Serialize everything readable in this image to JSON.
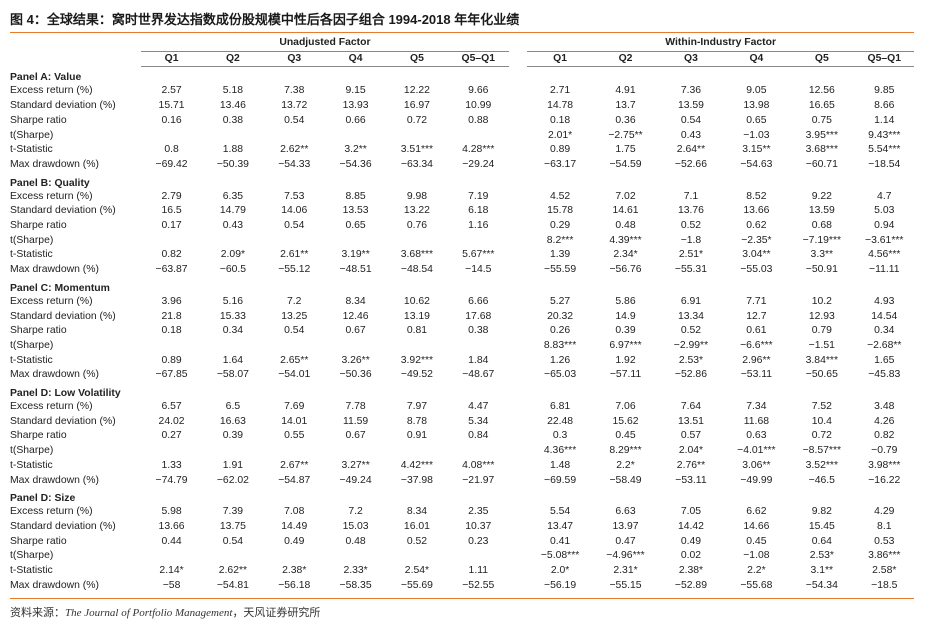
{
  "title": "图 4：全球结果：窝时世界发达指数成份股规模中性后各因子组合 1994-2018 年年化业绩",
  "groups": {
    "unadjusted": "Unadjusted Factor",
    "within": "Within-Industry Factor"
  },
  "columns": [
    "Q1",
    "Q2",
    "Q3",
    "Q4",
    "Q5",
    "Q5–Q1",
    "Q1",
    "Q2",
    "Q3",
    "Q4",
    "Q5",
    "Q5–Q1"
  ],
  "panels": [
    {
      "title": "Panel A: Value",
      "rows": [
        {
          "label": "Excess return (%)",
          "values": [
            "2.57",
            "5.18",
            "7.38",
            "9.15",
            "12.22",
            "9.66",
            "2.71",
            "4.91",
            "7.36",
            "9.05",
            "12.56",
            "9.85"
          ]
        },
        {
          "label": "Standard deviation (%)",
          "values": [
            "15.71",
            "13.46",
            "13.72",
            "13.93",
            "16.97",
            "10.99",
            "14.78",
            "13.7",
            "13.59",
            "13.98",
            "16.65",
            "8.66"
          ]
        },
        {
          "label": "Sharpe ratio",
          "values": [
            "0.16",
            "0.38",
            "0.54",
            "0.66",
            "0.72",
            "0.88",
            "0.18",
            "0.36",
            "0.54",
            "0.65",
            "0.75",
            "1.14"
          ]
        },
        {
          "label": "t(Sharpe)",
          "values": [
            "",
            "",
            "",
            "",
            "",
            "",
            "2.01*",
            "−2.75**",
            "0.43",
            "−1.03",
            "3.95***",
            "9.43***"
          ]
        },
        {
          "label": "t-Statistic",
          "values": [
            "0.8",
            "1.88",
            "2.62**",
            "3.2**",
            "3.51***",
            "4.28***",
            "0.89",
            "1.75",
            "2.64**",
            "3.15**",
            "3.68***",
            "5.54***"
          ]
        },
        {
          "label": "Max drawdown (%)",
          "values": [
            "−69.42",
            "−50.39",
            "−54.33",
            "−54.36",
            "−63.34",
            "−29.24",
            "−63.17",
            "−54.59",
            "−52.66",
            "−54.63",
            "−60.71",
            "−18.54"
          ]
        }
      ]
    },
    {
      "title": "Panel B: Quality",
      "rows": [
        {
          "label": "Excess return (%)",
          "values": [
            "2.79",
            "6.35",
            "7.53",
            "8.85",
            "9.98",
            "7.19",
            "4.52",
            "7.02",
            "7.1",
            "8.52",
            "9.22",
            "4.7"
          ]
        },
        {
          "label": "Standard deviation (%)",
          "values": [
            "16.5",
            "14.79",
            "14.06",
            "13.53",
            "13.22",
            "6.18",
            "15.78",
            "14.61",
            "13.76",
            "13.66",
            "13.59",
            "5.03"
          ]
        },
        {
          "label": "Sharpe ratio",
          "values": [
            "0.17",
            "0.43",
            "0.54",
            "0.65",
            "0.76",
            "1.16",
            "0.29",
            "0.48",
            "0.52",
            "0.62",
            "0.68",
            "0.94"
          ]
        },
        {
          "label": "t(Sharpe)",
          "values": [
            "",
            "",
            "",
            "",
            "",
            "",
            "8.2***",
            "4.39***",
            "−1.8",
            "−2.35*",
            "−7.19***",
            "−3.61***"
          ]
        },
        {
          "label": "t-Statistic",
          "values": [
            "0.82",
            "2.09*",
            "2.61**",
            "3.19**",
            "3.68***",
            "5.67***",
            "1.39",
            "2.34*",
            "2.51*",
            "3.04**",
            "3.3**",
            "4.56***"
          ]
        },
        {
          "label": "Max drawdown (%)",
          "values": [
            "−63.87",
            "−60.5",
            "−55.12",
            "−48.51",
            "−48.54",
            "−14.5",
            "−55.59",
            "−56.76",
            "−55.31",
            "−55.03",
            "−50.91",
            "−11.11"
          ]
        }
      ]
    },
    {
      "title": "Panel C: Momentum",
      "rows": [
        {
          "label": "Excess return (%)",
          "values": [
            "3.96",
            "5.16",
            "7.2",
            "8.34",
            "10.62",
            "6.66",
            "5.27",
            "5.86",
            "6.91",
            "7.71",
            "10.2",
            "4.93"
          ]
        },
        {
          "label": "Standard deviation (%)",
          "values": [
            "21.8",
            "15.33",
            "13.25",
            "12.46",
            "13.19",
            "17.68",
            "20.32",
            "14.9",
            "13.34",
            "12.7",
            "12.93",
            "14.54"
          ]
        },
        {
          "label": "Sharpe ratio",
          "values": [
            "0.18",
            "0.34",
            "0.54",
            "0.67",
            "0.81",
            "0.38",
            "0.26",
            "0.39",
            "0.52",
            "0.61",
            "0.79",
            "0.34"
          ]
        },
        {
          "label": "t(Sharpe)",
          "values": [
            "",
            "",
            "",
            "",
            "",
            "",
            "8.83***",
            "6.97***",
            "−2.99**",
            "−6.6***",
            "−1.51",
            "−2.68**"
          ]
        },
        {
          "label": "t-Statistic",
          "values": [
            "0.89",
            "1.64",
            "2.65**",
            "3.26**",
            "3.92***",
            "1.84",
            "1.26",
            "1.92",
            "2.53*",
            "2.96**",
            "3.84***",
            "1.65"
          ]
        },
        {
          "label": "Max drawdown (%)",
          "values": [
            "−67.85",
            "−58.07",
            "−54.01",
            "−50.36",
            "−49.52",
            "−48.67",
            "−65.03",
            "−57.11",
            "−52.86",
            "−53.11",
            "−50.65",
            "−45.83"
          ]
        }
      ]
    },
    {
      "title": "Panel D: Low Volatility",
      "rows": [
        {
          "label": "Excess return (%)",
          "values": [
            "6.57",
            "6.5",
            "7.69",
            "7.78",
            "7.97",
            "4.47",
            "6.81",
            "7.06",
            "7.64",
            "7.34",
            "7.52",
            "3.48"
          ]
        },
        {
          "label": "Standard deviation (%)",
          "values": [
            "24.02",
            "16.63",
            "14.01",
            "11.59",
            "8.78",
            "5.34",
            "22.48",
            "15.62",
            "13.51",
            "11.68",
            "10.4",
            "4.26"
          ]
        },
        {
          "label": "Sharpe ratio",
          "values": [
            "0.27",
            "0.39",
            "0.55",
            "0.67",
            "0.91",
            "0.84",
            "0.3",
            "0.45",
            "0.57",
            "0.63",
            "0.72",
            "0.82"
          ]
        },
        {
          "label": "t(Sharpe)",
          "values": [
            "",
            "",
            "",
            "",
            "",
            "",
            "4.36***",
            "8.29***",
            "2.04*",
            "−4.01***",
            "−8.57***",
            "−0.79"
          ]
        },
        {
          "label": "t-Statistic",
          "values": [
            "1.33",
            "1.91",
            "2.67**",
            "3.27**",
            "4.42***",
            "4.08***",
            "1.48",
            "2.2*",
            "2.76**",
            "3.06**",
            "3.52***",
            "3.98***"
          ]
        },
        {
          "label": "Max drawdown (%)",
          "values": [
            "−74.79",
            "−62.02",
            "−54.87",
            "−49.24",
            "−37.98",
            "−21.97",
            "−69.59",
            "−58.49",
            "−53.11",
            "−49.99",
            "−46.5",
            "−16.22"
          ]
        }
      ]
    },
    {
      "title": "Panel D: Size",
      "rows": [
        {
          "label": "Excess return (%)",
          "values": [
            "5.98",
            "7.39",
            "7.08",
            "7.2",
            "8.34",
            "2.35",
            "5.54",
            "6.63",
            "7.05",
            "6.62",
            "9.82",
            "4.29"
          ]
        },
        {
          "label": "Standard deviation (%)",
          "values": [
            "13.66",
            "13.75",
            "14.49",
            "15.03",
            "16.01",
            "10.37",
            "13.47",
            "13.97",
            "14.42",
            "14.66",
            "15.45",
            "8.1"
          ]
        },
        {
          "label": "Sharpe ratio",
          "values": [
            "0.44",
            "0.54",
            "0.49",
            "0.48",
            "0.52",
            "0.23",
            "0.41",
            "0.47",
            "0.49",
            "0.45",
            "0.64",
            "0.53"
          ]
        },
        {
          "label": "t(Sharpe)",
          "values": [
            "",
            "",
            "",
            "",
            "",
            "",
            "−5.08***",
            "−4.96***",
            "0.02",
            "−1.08",
            "2.53*",
            "3.86***"
          ]
        },
        {
          "label": "t-Statistic",
          "values": [
            "2.14*",
            "2.62**",
            "2.38*",
            "2.33*",
            "2.54*",
            "1.11",
            "2.0*",
            "2.31*",
            "2.38*",
            "2.2*",
            "3.1**",
            "2.58*"
          ]
        },
        {
          "label": "Max drawdown (%)",
          "values": [
            "−58",
            "−54.81",
            "−56.18",
            "−58.35",
            "−55.69",
            "−52.55",
            "−56.19",
            "−55.15",
            "−52.89",
            "−55.68",
            "−54.34",
            "−18.5"
          ]
        }
      ]
    }
  ],
  "source": {
    "prefix": "资料来源：",
    "journal": "The Journal of Portfolio Management",
    "suffix": "，天风证券研究所"
  },
  "colors": {
    "rule": "#e87b2b"
  }
}
